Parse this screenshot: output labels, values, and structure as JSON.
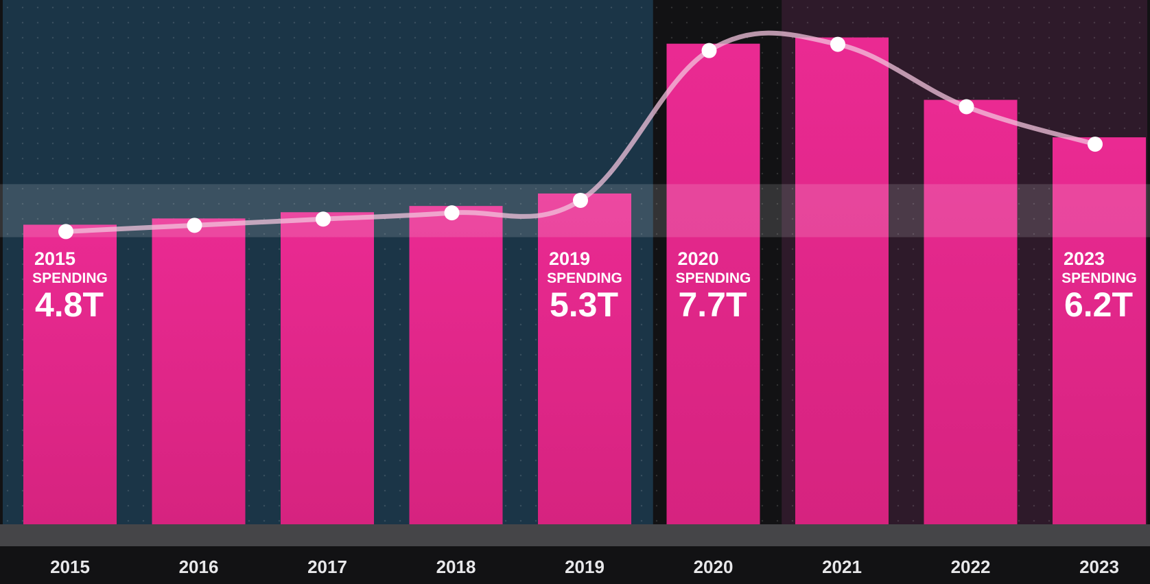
{
  "chart_data": {
    "type": "bar",
    "title": "",
    "xlabel": "",
    "ylabel": "",
    "categories": [
      "2015",
      "2016",
      "2017",
      "2018",
      "2019",
      "2020",
      "2021",
      "2022",
      "2023"
    ],
    "values": [
      4.8,
      4.9,
      5.0,
      5.1,
      5.3,
      7.7,
      7.8,
      6.8,
      6.2
    ],
    "ylim": [
      0,
      8.4
    ],
    "grid": false,
    "legend": "none",
    "trend_line": true,
    "callouts": [
      {
        "index": 0,
        "year": "2015",
        "label": "SPENDING",
        "value": "4.8T"
      },
      {
        "index": 4,
        "year": "2019",
        "label": "SPENDING",
        "value": "5.3T"
      },
      {
        "index": 5,
        "year": "2020",
        "label": "SPENDING",
        "value": "7.7T"
      },
      {
        "index": 8,
        "year": "2023",
        "label": "SPENDING",
        "value": "6.2T"
      }
    ],
    "colors": {
      "bar": "#e8288f",
      "line": "#f2c3dc",
      "point": "#ffffff",
      "panel_pre_2020": "#1b3547",
      "panel_post_2020": "#2e1a2a",
      "axis_band": "#454548",
      "background": "#121214"
    }
  }
}
